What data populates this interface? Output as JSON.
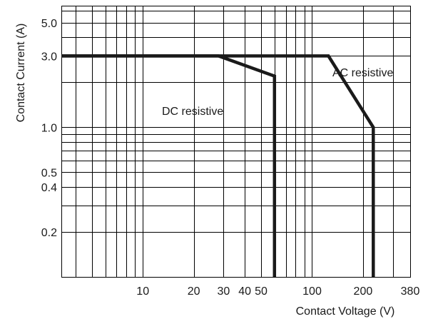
{
  "chart_data": {
    "type": "line",
    "title": "",
    "xlabel": "Contact Voltage (V)",
    "ylabel": "Contact Current (A)",
    "x_scale": "log",
    "y_scale": "log",
    "xlim": [
      3.3,
      380
    ],
    "ylim": [
      0.1,
      6.5
    ],
    "grid": true,
    "legend": "none",
    "x_tick_labels": [
      "10",
      "20",
      "30",
      "40",
      "50",
      "100",
      "200",
      "380"
    ],
    "y_tick_labels": [
      "5.0",
      "3.0",
      "1.0",
      "0.5",
      "0.4",
      "0.2"
    ],
    "series": [
      {
        "name": "DC resistive",
        "x": [
          3.3,
          28,
          60,
          60
        ],
        "y": [
          3.0,
          3.0,
          2.2,
          0.1
        ]
      },
      {
        "name": "AC resistive",
        "x": [
          3.3,
          125,
          230,
          230
        ],
        "y": [
          3.0,
          3.0,
          1.0,
          0.1
        ]
      }
    ],
    "colors": {
      "line": "#1a1a1a",
      "grid": "#000000",
      "text": "#1a1a1a"
    }
  }
}
